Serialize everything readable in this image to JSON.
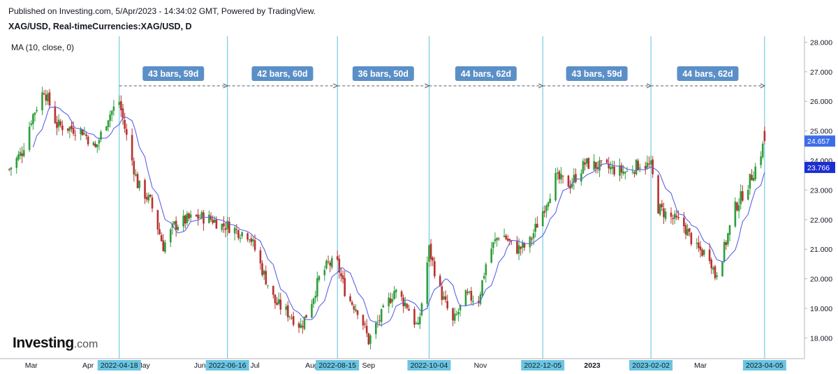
{
  "header": {
    "published": "Published on Investing.com, 5/Apr/2023 - 14:34:02 GMT, Powered by TradingView.",
    "symbol": "XAG/USD, Real-timeCurrencies:XAG/USD, D",
    "indicator": "MA (10, close, 0)"
  },
  "logo": {
    "name": "Investing",
    "suffix": ".com"
  },
  "colors": {
    "up": "#2e9e3a",
    "down": "#b8312f",
    "ma": "#5b63e6",
    "vline": "#5bc0de",
    "tag_bg": "#5b8fc7",
    "price_tag": "#3d6ee8",
    "ma_tag": "#1b2fd1",
    "axis_tag": "#6cc5e0"
  },
  "chart_data": {
    "type": "candlestick",
    "title": "XAG/USD, Real-timeCurrencies:XAG/USD, D",
    "ylim": [
      17.3,
      28.2
    ],
    "y_ticks": [
      "28.000",
      "27.000",
      "26.000",
      "25.000",
      "24.000",
      "23.000",
      "22.000",
      "21.000",
      "20.000",
      "19.000",
      "18.000"
    ],
    "x_month_labels": [
      {
        "label": "Mar",
        "date": "2022-03-01"
      },
      {
        "label": "Apr",
        "date": "2022-04-01"
      },
      {
        "label": "May",
        "date": "2022-05-01"
      },
      {
        "label": "Jun",
        "date": "2022-06-01"
      },
      {
        "label": "Jul",
        "date": "2022-07-01"
      },
      {
        "label": "Aug",
        "date": "2022-08-01"
      },
      {
        "label": "Sep",
        "date": "2022-09-01"
      },
      {
        "label": "Nov",
        "date": "2022-11-01"
      },
      {
        "label": "2023",
        "date": "2023-01-01"
      },
      {
        "label": "Mar",
        "date": "2023-03-01"
      }
    ],
    "vertical_markers": [
      "2022-04-18",
      "2022-06-16",
      "2022-08-15",
      "2022-10-04",
      "2022-12-05",
      "2023-02-02",
      "2023-04-05"
    ],
    "intervals": [
      "43 bars, 59d",
      "42 bars, 60d",
      "36 bars, 50d",
      "44 bars, 62d",
      "43 bars, 59d",
      "44 bars, 62d"
    ],
    "last_price": "24.657",
    "ma_value": "23.766",
    "ma_period": 10,
    "anchor_closes": [
      [
        "2022-02-17",
        23.7
      ],
      [
        "2022-02-24",
        24.3
      ],
      [
        "2022-03-01",
        25.4
      ],
      [
        "2022-03-08",
        26.4
      ],
      [
        "2022-03-15",
        25.2
      ],
      [
        "2022-03-22",
        25.1
      ],
      [
        "2022-03-29",
        25.0
      ],
      [
        "2022-04-05",
        24.4
      ],
      [
        "2022-04-12",
        25.5
      ],
      [
        "2022-04-18",
        26.0
      ],
      [
        "2022-04-22",
        24.8
      ],
      [
        "2022-04-28",
        23.2
      ],
      [
        "2022-05-05",
        22.6
      ],
      [
        "2022-05-12",
        21.1
      ],
      [
        "2022-05-18",
        21.8
      ],
      [
        "2022-05-25",
        22.0
      ],
      [
        "2022-06-01",
        22.1
      ],
      [
        "2022-06-08",
        22.0
      ],
      [
        "2022-06-13",
        21.8
      ],
      [
        "2022-06-16",
        21.8
      ],
      [
        "2022-06-22",
        21.6
      ],
      [
        "2022-06-28",
        21.5
      ],
      [
        "2022-07-05",
        20.3
      ],
      [
        "2022-07-12",
        19.2
      ],
      [
        "2022-07-20",
        18.8
      ],
      [
        "2022-07-26",
        18.4
      ],
      [
        "2022-07-30",
        18.9
      ],
      [
        "2022-08-05",
        20.0
      ],
      [
        "2022-08-10",
        20.5
      ],
      [
        "2022-08-15",
        20.5
      ],
      [
        "2022-08-20",
        19.4
      ],
      [
        "2022-08-27",
        18.9
      ],
      [
        "2022-09-01",
        17.9
      ],
      [
        "2022-09-05",
        18.4
      ],
      [
        "2022-09-10",
        19.0
      ],
      [
        "2022-09-15",
        19.6
      ],
      [
        "2022-09-22",
        19.1
      ],
      [
        "2022-09-28",
        18.3
      ],
      [
        "2022-10-04",
        21.0
      ],
      [
        "2022-10-10",
        19.6
      ],
      [
        "2022-10-17",
        18.5
      ],
      [
        "2022-10-24",
        19.4
      ],
      [
        "2022-10-31",
        19.3
      ],
      [
        "2022-11-05",
        20.8
      ],
      [
        "2022-11-12",
        21.6
      ],
      [
        "2022-11-20",
        21.0
      ],
      [
        "2022-11-27",
        21.1
      ],
      [
        "2022-12-05",
        22.3
      ],
      [
        "2022-12-12",
        23.4
      ],
      [
        "2022-12-20",
        23.2
      ],
      [
        "2022-12-28",
        23.9
      ],
      [
        "2023-01-05",
        23.8
      ],
      [
        "2023-01-12",
        23.7
      ],
      [
        "2023-01-20",
        23.6
      ],
      [
        "2023-01-27",
        23.9
      ],
      [
        "2023-02-02",
        23.8
      ],
      [
        "2023-02-06",
        22.4
      ],
      [
        "2023-02-12",
        22.1
      ],
      [
        "2023-02-20",
        21.8
      ],
      [
        "2023-02-27",
        21.0
      ],
      [
        "2023-03-06",
        20.8
      ],
      [
        "2023-03-09",
        20.1
      ],
      [
        "2023-03-13",
        20.8
      ],
      [
        "2023-03-20",
        22.4
      ],
      [
        "2023-03-27",
        23.2
      ],
      [
        "2023-04-01",
        23.9
      ],
      [
        "2023-04-05",
        24.657
      ]
    ]
  }
}
